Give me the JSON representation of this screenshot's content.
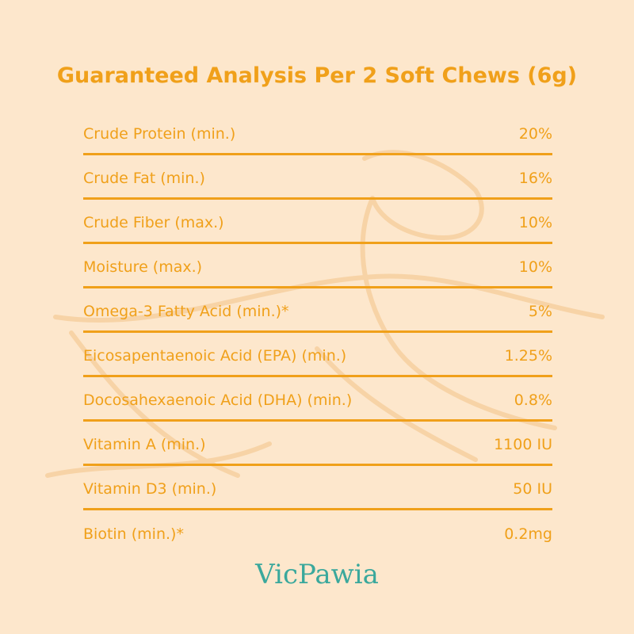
{
  "header": {
    "title": "Guaranteed Analysis Per 2 Soft Chews (6g)"
  },
  "table": {
    "rows": [
      [
        "Crude Protein (min.)",
        "20%"
      ],
      [
        "Crude Fat (min.)",
        "16%"
      ],
      [
        "Crude Fiber (max.)",
        "10%"
      ],
      [
        "Moisture (max.)",
        "10%"
      ],
      [
        "Omega-3 Fatty Acid (min.)*",
        "5%"
      ],
      [
        "Eicosapentaenoic Acid (EPA) (min.)",
        "1.25%"
      ],
      [
        "Docosahexaenoic Acid (DHA) (min.)",
        "0.8%"
      ],
      [
        "Vitamin A (min.)",
        "1100 IU"
      ],
      [
        "Vitamin D3 (min.)",
        "50 IU"
      ],
      [
        "Biotin (min.)*",
        "0.2mg"
      ]
    ]
  },
  "footer": {
    "brand": "VicPawia"
  }
}
